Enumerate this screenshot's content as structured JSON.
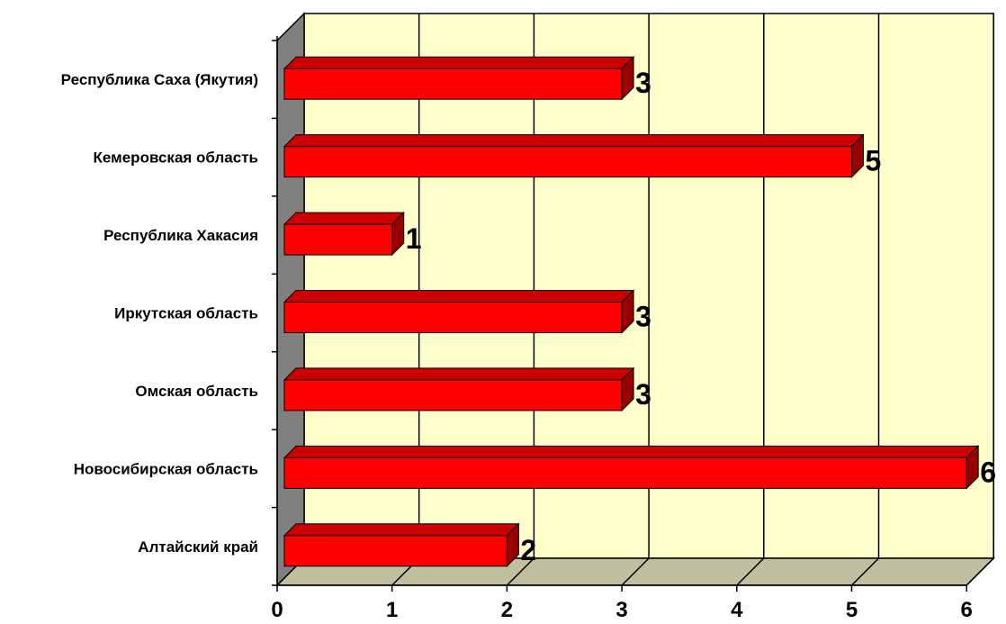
{
  "chart_data": {
    "type": "bar",
    "orientation": "horizontal",
    "style": "3d",
    "categories": [
      "Республика Саха (Якутия)",
      "Кемеровская область",
      "Республика Хакасия",
      "Иркутская область",
      "Омская область",
      "Новосибирская область",
      "Алтайский край"
    ],
    "values": [
      3,
      5,
      1,
      3,
      3,
      6,
      2
    ],
    "data_labels": [
      "3",
      "5",
      "1",
      "3",
      "3",
      "6",
      "2"
    ],
    "x_ticks": [
      "0",
      "1",
      "2",
      "3",
      "4",
      "5",
      "6"
    ],
    "xlim": [
      0,
      6
    ],
    "title": "",
    "xlabel": "",
    "ylabel": "",
    "grid": true,
    "legend": "none",
    "colors": {
      "bar_front": "#ff0000",
      "bar_top": "#cc0000",
      "bar_side": "#990000",
      "back_wall": "#ffffcc",
      "floor": "#c0c0a0",
      "side_wall": "#808080"
    }
  }
}
